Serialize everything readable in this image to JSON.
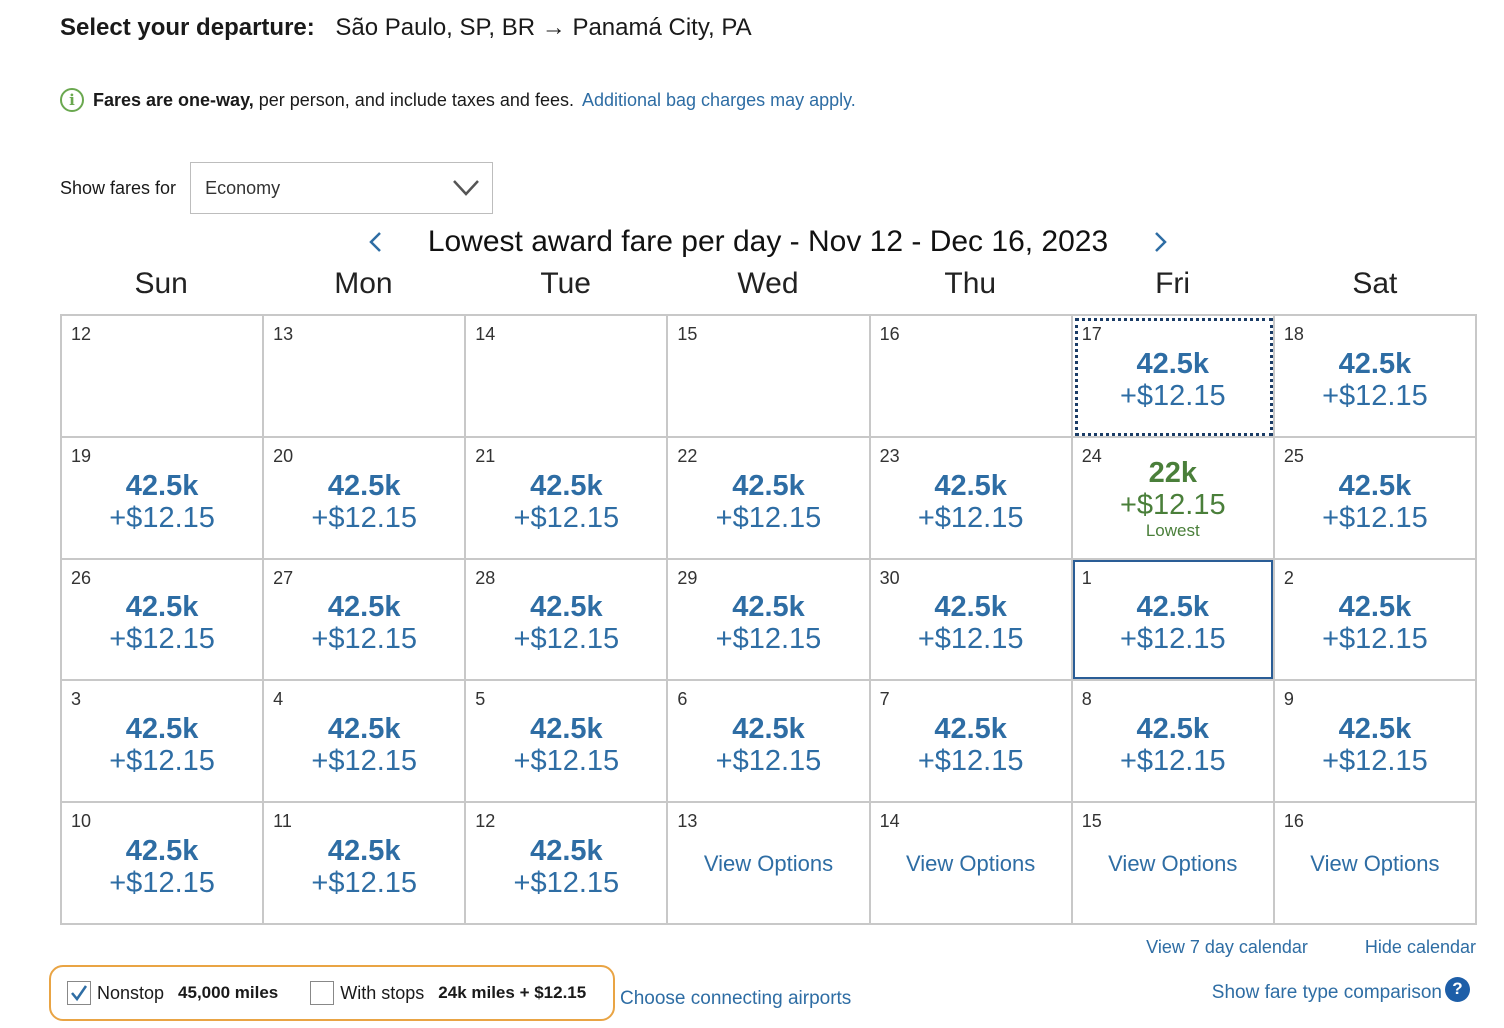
{
  "header": {
    "label": "Select your departure:",
    "route": "São Paulo, SP, BR → Panamá City, PA"
  },
  "notice": {
    "icon": "info-icon",
    "strong": "Fares are one-way,",
    "rest": "per person, and include taxes and fees.",
    "link": "Additional bag charges may apply."
  },
  "fare_selector": {
    "caption": "Show fares for",
    "selected": "Economy"
  },
  "calendar": {
    "title": "Lowest award fare per day - Nov 12 - Dec 16, 2023",
    "weekdays": [
      "Sun",
      "Mon",
      "Tue",
      "Wed",
      "Thu",
      "Fri",
      "Sat"
    ],
    "cells": [
      {
        "day": "12",
        "miles": "",
        "tax": "",
        "note": "",
        "view": "",
        "state": "empty"
      },
      {
        "day": "13",
        "miles": "",
        "tax": "",
        "note": "",
        "view": "",
        "state": "empty"
      },
      {
        "day": "14",
        "miles": "",
        "tax": "",
        "note": "",
        "view": "",
        "state": "empty"
      },
      {
        "day": "15",
        "miles": "",
        "tax": "",
        "note": "",
        "view": "",
        "state": "empty"
      },
      {
        "day": "16",
        "miles": "",
        "tax": "",
        "note": "",
        "view": "",
        "state": "empty"
      },
      {
        "day": "17",
        "miles": "42.5k",
        "tax": "+$12.15",
        "note": "",
        "view": "",
        "state": "focused"
      },
      {
        "day": "18",
        "miles": "42.5k",
        "tax": "+$12.15",
        "note": "",
        "view": "",
        "state": "fare"
      },
      {
        "day": "19",
        "miles": "42.5k",
        "tax": "+$12.15",
        "note": "",
        "view": "",
        "state": "fare"
      },
      {
        "day": "20",
        "miles": "42.5k",
        "tax": "+$12.15",
        "note": "",
        "view": "",
        "state": "fare"
      },
      {
        "day": "21",
        "miles": "42.5k",
        "tax": "+$12.15",
        "note": "",
        "view": "",
        "state": "fare"
      },
      {
        "day": "22",
        "miles": "42.5k",
        "tax": "+$12.15",
        "note": "",
        "view": "",
        "state": "fare"
      },
      {
        "day": "23",
        "miles": "42.5k",
        "tax": "+$12.15",
        "note": "",
        "view": "",
        "state": "fare"
      },
      {
        "day": "24",
        "miles": "22k",
        "tax": "+$12.15",
        "note": "Lowest",
        "view": "",
        "state": "lowest"
      },
      {
        "day": "25",
        "miles": "42.5k",
        "tax": "+$12.15",
        "note": "",
        "view": "",
        "state": "fare"
      },
      {
        "day": "26",
        "miles": "42.5k",
        "tax": "+$12.15",
        "note": "",
        "view": "",
        "state": "fare"
      },
      {
        "day": "27",
        "miles": "42.5k",
        "tax": "+$12.15",
        "note": "",
        "view": "",
        "state": "fare"
      },
      {
        "day": "28",
        "miles": "42.5k",
        "tax": "+$12.15",
        "note": "",
        "view": "",
        "state": "fare"
      },
      {
        "day": "29",
        "miles": "42.5k",
        "tax": "+$12.15",
        "note": "",
        "view": "",
        "state": "fare"
      },
      {
        "day": "30",
        "miles": "42.5k",
        "tax": "+$12.15",
        "note": "",
        "view": "",
        "state": "fare"
      },
      {
        "day": "1",
        "miles": "42.5k",
        "tax": "+$12.15",
        "note": "",
        "view": "",
        "state": "selected"
      },
      {
        "day": "2",
        "miles": "42.5k",
        "tax": "+$12.15",
        "note": "",
        "view": "",
        "state": "fare"
      },
      {
        "day": "3",
        "miles": "42.5k",
        "tax": "+$12.15",
        "note": "",
        "view": "",
        "state": "fare"
      },
      {
        "day": "4",
        "miles": "42.5k",
        "tax": "+$12.15",
        "note": "",
        "view": "",
        "state": "fare"
      },
      {
        "day": "5",
        "miles": "42.5k",
        "tax": "+$12.15",
        "note": "",
        "view": "",
        "state": "fare"
      },
      {
        "day": "6",
        "miles": "42.5k",
        "tax": "+$12.15",
        "note": "",
        "view": "",
        "state": "fare"
      },
      {
        "day": "7",
        "miles": "42.5k",
        "tax": "+$12.15",
        "note": "",
        "view": "",
        "state": "fare"
      },
      {
        "day": "8",
        "miles": "42.5k",
        "tax": "+$12.15",
        "note": "",
        "view": "",
        "state": "fare"
      },
      {
        "day": "9",
        "miles": "42.5k",
        "tax": "+$12.15",
        "note": "",
        "view": "",
        "state": "fare"
      },
      {
        "day": "10",
        "miles": "42.5k",
        "tax": "+$12.15",
        "note": "",
        "view": "",
        "state": "fare"
      },
      {
        "day": "11",
        "miles": "42.5k",
        "tax": "+$12.15",
        "note": "",
        "view": "",
        "state": "fare"
      },
      {
        "day": "12",
        "miles": "42.5k",
        "tax": "+$12.15",
        "note": "",
        "view": "",
        "state": "fare"
      },
      {
        "day": "13",
        "miles": "",
        "tax": "",
        "note": "",
        "view": "View Options",
        "state": "view"
      },
      {
        "day": "14",
        "miles": "",
        "tax": "",
        "note": "",
        "view": "View Options",
        "state": "view"
      },
      {
        "day": "15",
        "miles": "",
        "tax": "",
        "note": "",
        "view": "View Options",
        "state": "view"
      },
      {
        "day": "16",
        "miles": "",
        "tax": "",
        "note": "",
        "view": "View Options",
        "state": "view"
      }
    ],
    "links": {
      "seven_day": "View 7 day calendar",
      "hide": "Hide calendar"
    }
  },
  "filters": {
    "nonstop": {
      "label": "Nonstop",
      "miles": "45,000 miles",
      "checked": true
    },
    "with_stops": {
      "label": "With stops",
      "miles": "24k miles + $12.15",
      "checked": false
    }
  },
  "connect_link": "Choose connecting airports",
  "compare_link": "Show fare type comparison",
  "help_icon_glyph": "?",
  "colors": {
    "link": "#2e6da4",
    "lowest": "#4a7f3a",
    "filter_border": "#e9a444",
    "selected_border": "#2a5d96"
  }
}
